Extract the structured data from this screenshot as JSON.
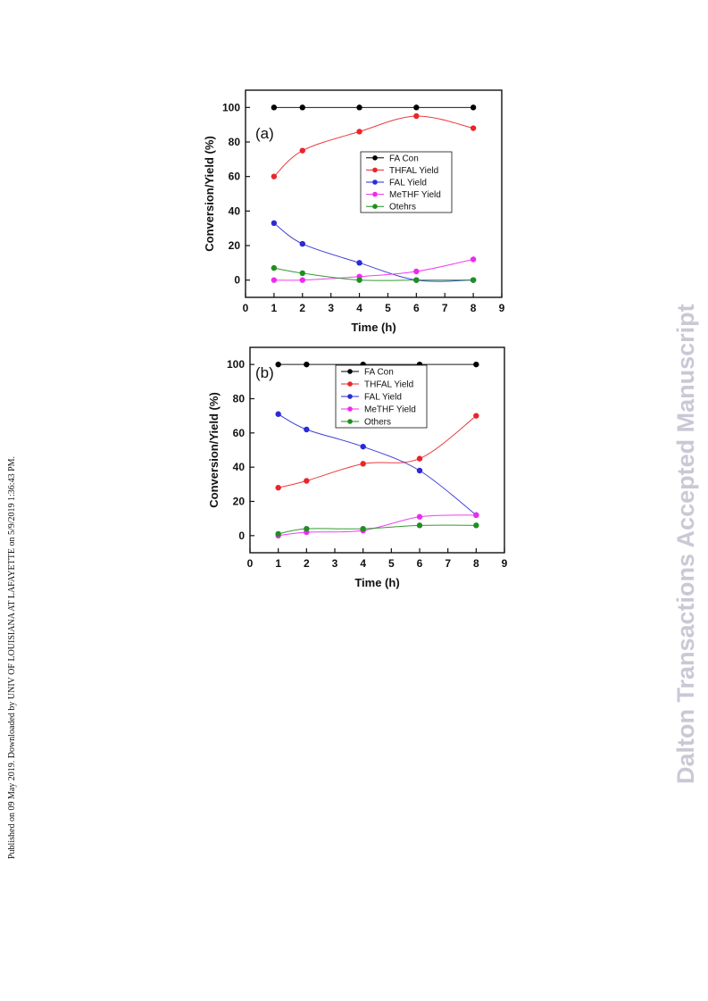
{
  "side_note": "Published on 09 May 2019. Downloaded by UNIV OF LOUISIANA AT LAFAYETTE on 5/9/2019 1:36:43 PM.",
  "watermark": "Dalton Transactions Accepted Manuscript",
  "chart_data": [
    {
      "type": "line",
      "panel_label": "(a)",
      "xlabel": "Time (h)",
      "ylabel": "Conversion/Yield (%)",
      "xlim": [
        0,
        9
      ],
      "ylim": [
        -10,
        110
      ],
      "xticks": [
        0,
        1,
        2,
        3,
        4,
        5,
        6,
        7,
        8,
        9
      ],
      "yticks": [
        0,
        20,
        40,
        60,
        80,
        100
      ],
      "legend_position": "center-right",
      "x": [
        1,
        2,
        4,
        6,
        8
      ],
      "series": [
        {
          "name": "FA Con",
          "color": "#000000",
          "values": [
            100,
            100,
            100,
            100,
            100
          ]
        },
        {
          "name": "THFAL Yield",
          "color": "#e8262a",
          "values": [
            60,
            75,
            86,
            95,
            88
          ]
        },
        {
          "name": "FAL Yield",
          "color": "#2a2ad6",
          "values": [
            33,
            21,
            10,
            0,
            0
          ]
        },
        {
          "name": "MeTHF Yield",
          "color": "#ee2bee",
          "values": [
            0,
            0,
            2,
            5,
            12
          ]
        },
        {
          "name": "Otehrs",
          "color": "#1f8f1f",
          "values": [
            7,
            4,
            0,
            0,
            0
          ]
        }
      ]
    },
    {
      "type": "line",
      "panel_label": "(b)",
      "xlabel": "Time (h)",
      "ylabel": "Conversion/Yield (%)",
      "xlim": [
        0,
        9
      ],
      "ylim": [
        -10,
        110
      ],
      "xticks": [
        0,
        1,
        2,
        3,
        4,
        5,
        6,
        7,
        8,
        9
      ],
      "yticks": [
        0,
        20,
        40,
        60,
        80,
        100
      ],
      "legend_position": "top-center",
      "x": [
        1,
        2,
        4,
        6,
        8
      ],
      "series": [
        {
          "name": "FA Con",
          "color": "#000000",
          "values": [
            100,
            100,
            100,
            100,
            100
          ]
        },
        {
          "name": "THFAL Yield",
          "color": "#e8262a",
          "values": [
            28,
            32,
            42,
            45,
            70
          ]
        },
        {
          "name": "FAL Yield",
          "color": "#2a2ad6",
          "values": [
            71,
            62,
            52,
            38,
            12
          ]
        },
        {
          "name": "MeTHF Yield",
          "color": "#ee2bee",
          "values": [
            0,
            2,
            3,
            11,
            12
          ]
        },
        {
          "name": "Others",
          "color": "#1f8f1f",
          "values": [
            1,
            4,
            4,
            6,
            6
          ]
        }
      ]
    }
  ]
}
